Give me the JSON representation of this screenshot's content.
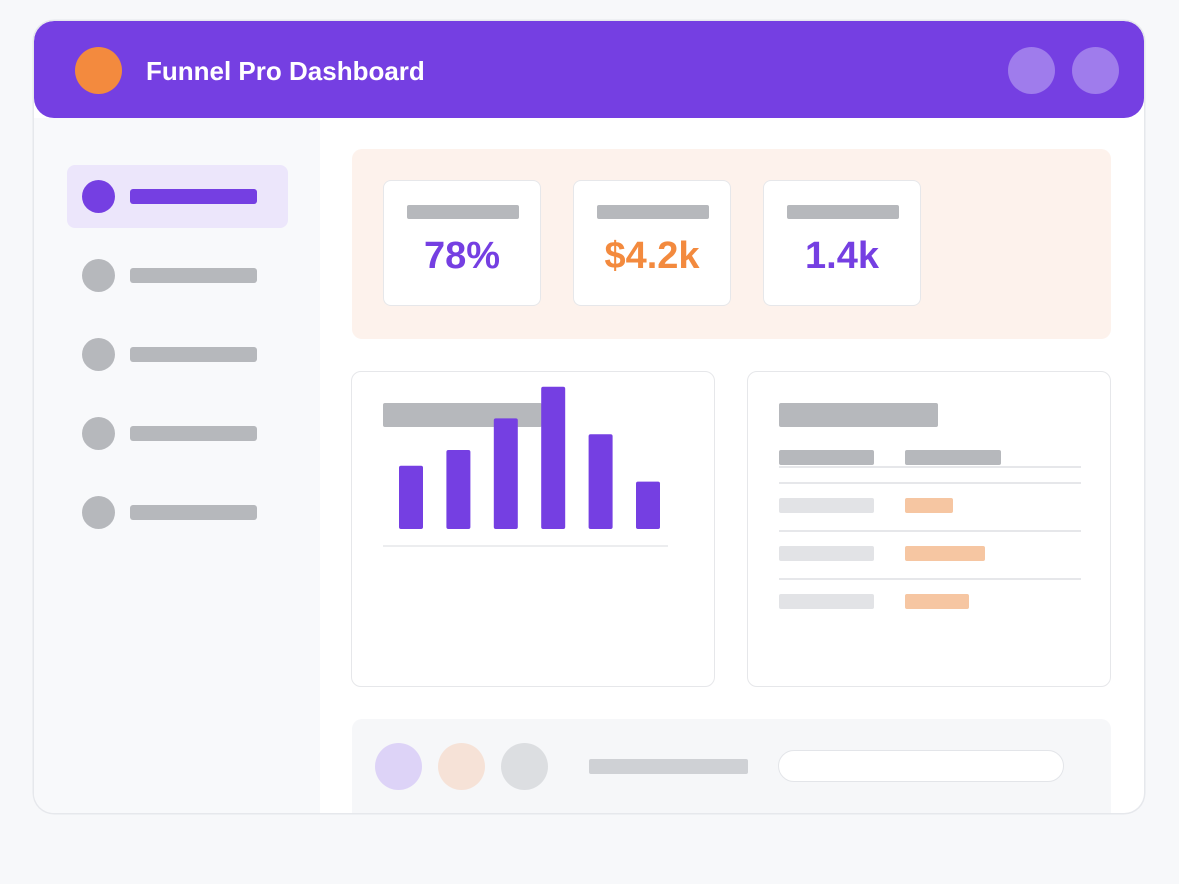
{
  "app": {
    "title": "Funnel Pro Dashboard"
  },
  "colors": {
    "brand_purple": "#753fe2",
    "accent_orange": "#f38a3e",
    "placeholder_gray": "#b6b8bc"
  },
  "sidebar": {
    "active_index": 0,
    "item_count": 5
  },
  "stats": [
    {
      "value": "78%",
      "color": "#753fe2"
    },
    {
      "value": "$4.2k",
      "color": "#f38a3e"
    },
    {
      "value": "1.4k",
      "color": "#753fe2"
    }
  ],
  "chart_data": {
    "type": "bar",
    "title": "",
    "xlabel": "",
    "ylabel": "",
    "values": [
      40,
      50,
      70,
      90,
      60,
      30
    ],
    "ylim": [
      0,
      100
    ],
    "grid": false
  },
  "table": {
    "row_count": 3,
    "value_fill_fractions": [
      0.5,
      0.84,
      0.67
    ]
  }
}
